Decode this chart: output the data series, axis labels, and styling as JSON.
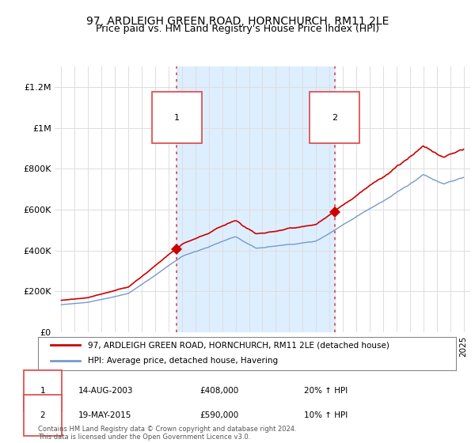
{
  "title": "97, ARDLEIGH GREEN ROAD, HORNCHURCH, RM11 2LE",
  "subtitle": "Price paid vs. HM Land Registry's House Price Index (HPI)",
  "ylabel_ticks": [
    "£0",
    "£200K",
    "£400K",
    "£600K",
    "£800K",
    "£1M",
    "£1.2M"
  ],
  "ytick_values": [
    0,
    200000,
    400000,
    600000,
    800000,
    1000000,
    1200000
  ],
  "ylim": [
    0,
    1300000
  ],
  "xlim_start": 1994.5,
  "xlim_end": 2025.5,
  "sale1_x": 2003.62,
  "sale1_y": 408000,
  "sale2_x": 2015.38,
  "sale2_y": 590000,
  "line_color_price": "#cc0000",
  "line_color_hpi": "#7799cc",
  "shading_color": "#ddeeff",
  "dashed_line_color": "#dd4444",
  "legend_label1": "97, ARDLEIGH GREEN ROAD, HORNCHURCH, RM11 2LE (detached house)",
  "legend_label2": "HPI: Average price, detached house, Havering",
  "sale1_date": "14-AUG-2003",
  "sale1_price": "£408,000",
  "sale1_hpi": "20% ↑ HPI",
  "sale2_date": "19-MAY-2015",
  "sale2_price": "£590,000",
  "sale2_hpi": "10% ↑ HPI",
  "footer": "Contains HM Land Registry data © Crown copyright and database right 2024.\nThis data is licensed under the Open Government Licence v3.0.",
  "background_color": "#ffffff",
  "plot_bg_color": "#ffffff",
  "grid_color": "#dddddd",
  "title_fontsize": 10,
  "subtitle_fontsize": 9
}
